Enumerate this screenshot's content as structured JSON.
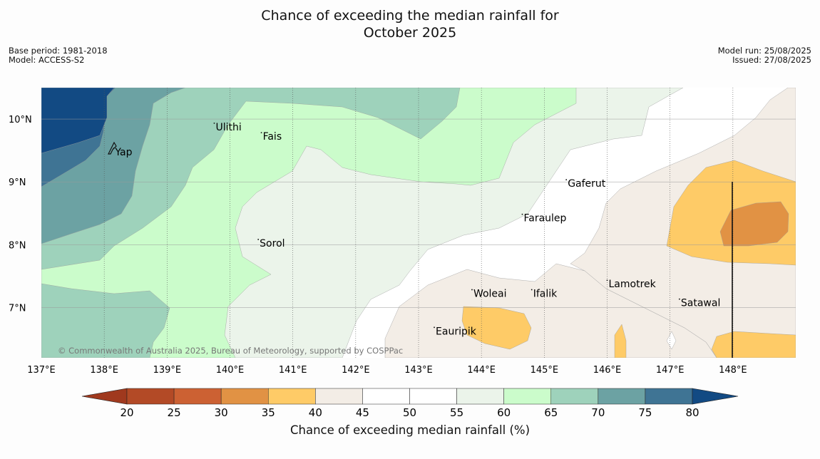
{
  "title": {
    "line1": "Chance of exceeding the median rainfall for",
    "line2": "October 2025"
  },
  "meta": {
    "base_period": "Base period: 1981-2018",
    "model": "Model: ACCESS-S2",
    "model_run": "Model run: 25/08/2025",
    "issued": "Issued: 27/08/2025"
  },
  "map": {
    "lon_range": [
      137,
      149
    ],
    "lat_range": [
      6.2,
      10.5
    ],
    "lon_ticks": [
      "137°E",
      "138°E",
      "139°E",
      "140°E",
      "141°E",
      "142°E",
      "143°E",
      "144°E",
      "145°E",
      "146°E",
      "147°E",
      "148°E"
    ],
    "lat_ticks": [
      "10°N",
      "9°N",
      "8°N",
      "7°N"
    ],
    "places": [
      {
        "name": "Ulithi",
        "lon": 139.75,
        "lat": 9.9
      },
      {
        "name": "Fais",
        "lon": 140.5,
        "lat": 9.75
      },
      {
        "name": "Yap",
        "lon": 138.15,
        "lat": 9.5
      },
      {
        "name": "Gaferut",
        "lon": 145.35,
        "lat": 9.0
      },
      {
        "name": "Faraulep",
        "lon": 144.65,
        "lat": 8.45
      },
      {
        "name": "Sorol",
        "lon": 140.45,
        "lat": 8.05
      },
      {
        "name": "Lamotrek",
        "lon": 146.0,
        "lat": 7.4
      },
      {
        "name": "Woleai",
        "lon": 143.85,
        "lat": 7.25
      },
      {
        "name": "Ifalik",
        "lon": 144.8,
        "lat": 7.25
      },
      {
        "name": "Satawal",
        "lon": 147.15,
        "lat": 7.1
      },
      {
        "name": "Eauripik",
        "lon": 143.25,
        "lat": 6.65
      }
    ],
    "credit": "© Commonwealth of Australia 2025, Bureau of Meteorology, supported by COSPPac"
  },
  "colorbar": {
    "levels": [
      "20",
      "25",
      "30",
      "35",
      "40",
      "45",
      "50",
      "55",
      "60",
      "65",
      "70",
      "75",
      "80"
    ],
    "colors": [
      "#b34a26",
      "#cc6133",
      "#e19244",
      "#fecb67",
      "#f3ede6",
      "#ffffff",
      "#ffffff",
      "#ebf4ea",
      "#cbfccb",
      "#9ed2bb",
      "#6ca2a3",
      "#3f7494"
    ],
    "under_color": "#a0391e",
    "over_color": "#124a83",
    "label": "Chance of exceeding median rainfall (%)"
  }
}
